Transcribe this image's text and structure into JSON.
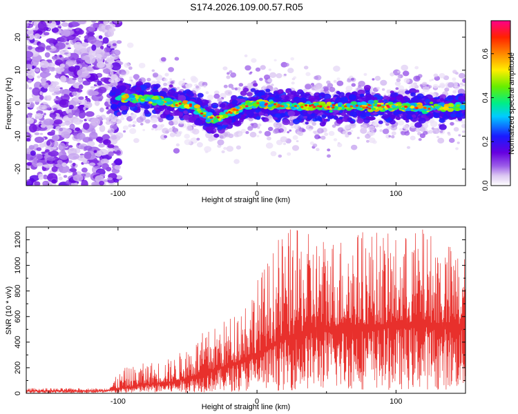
{
  "title": "S174.2026.109.00.57.R05",
  "chart_data": [
    {
      "type": "heatmap",
      "xlabel": "Height of straight line (km)",
      "ylabel": "Frequency (Hz)",
      "xlim": [
        -166,
        150
      ],
      "ylim": [
        -25,
        25
      ],
      "x_ticks": [
        -100,
        0,
        100
      ],
      "y_ticks": [
        -20,
        -10,
        0,
        10,
        20
      ],
      "colorbar": {
        "label": "Normalized spectral amplitude",
        "range": [
          0,
          0.75
        ],
        "ticks": [
          0.0,
          0.2,
          0.4,
          0.6
        ],
        "colormap": "rainbow: white → light purple → violet → blue → cyan → green → yellow → orange → red → magenta"
      },
      "signal_track": {
        "description": "frequency of the strongest signal vs height",
        "x": [
          -100,
          -80,
          -60,
          -45,
          -35,
          -30,
          -20,
          -10,
          0,
          20,
          40,
          60,
          80,
          100,
          120,
          148
        ],
        "y": [
          1.5,
          1.5,
          0,
          -1,
          -4.5,
          -5,
          -3,
          -1,
          0,
          -1,
          -1,
          -1,
          -1,
          -1,
          -1.5,
          -1
        ]
      },
      "noise_region_x": [
        -166,
        -103
      ]
    },
    {
      "type": "line",
      "xlabel": "Height of straight line (km)",
      "ylabel": "SNR (10 * v/v)",
      "xlim": [
        -166,
        150
      ],
      "ylim": [
        0,
        1300
      ],
      "x_ticks": [
        -100,
        0,
        100
      ],
      "y_ticks": [
        0,
        200,
        400,
        600,
        800,
        1000,
        1200
      ],
      "line_color": "#e8302c",
      "envelope": {
        "x": [
          -166,
          -110,
          -95,
          -80,
          -60,
          -40,
          -30,
          -20,
          -10,
          0,
          10,
          20,
          40,
          60,
          80,
          100,
          120,
          150
        ],
        "mean": [
          20,
          20,
          45,
          70,
          90,
          150,
          190,
          220,
          270,
          320,
          390,
          440,
          510,
          530,
          540,
          540,
          560,
          520
        ],
        "peak": [
          40,
          40,
          200,
          240,
          280,
          470,
          530,
          600,
          750,
          900,
          1100,
          1300,
          1250,
          1250,
          1300,
          1230,
          1300,
          1100
        ]
      }
    }
  ]
}
